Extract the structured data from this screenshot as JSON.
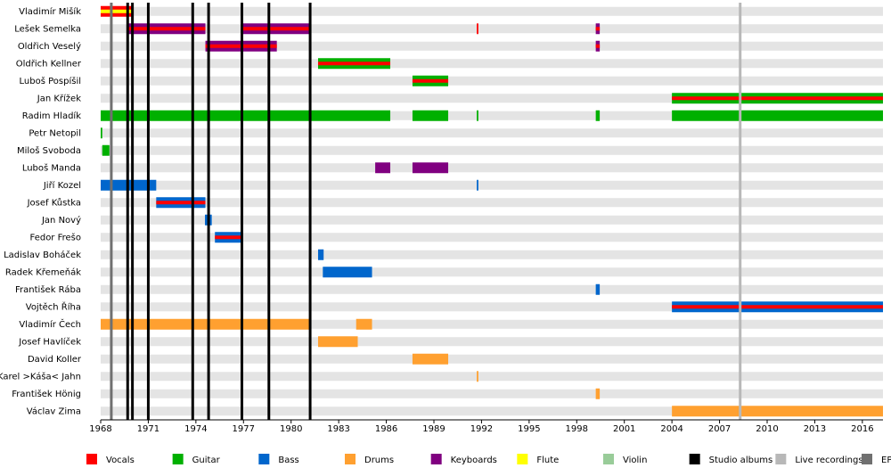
{
  "chart_data": {
    "type": "timeline",
    "xlim": [
      1968,
      2017.3
    ],
    "xticks": [
      1968,
      1971,
      1974,
      1977,
      1980,
      1983,
      1986,
      1989,
      1992,
      1995,
      1998,
      2001,
      2004,
      2007,
      2010,
      2013,
      2016
    ],
    "roles": [
      {
        "name": "Vocals",
        "color": "#ff0000"
      },
      {
        "name": "Guitar",
        "color": "#00b000"
      },
      {
        "name": "Bass",
        "color": "#0066cc"
      },
      {
        "name": "Drums",
        "color": "#ffa030"
      },
      {
        "name": "Keyboards",
        "color": "#800080"
      },
      {
        "name": "Flute",
        "color": "#ffff00"
      },
      {
        "name": "Violin",
        "color": "#99cc99"
      }
    ],
    "events": [
      {
        "name": "Studio albums",
        "color": "#000000",
        "x": [
          1969.7,
          1970.0,
          1971.0,
          1973.8,
          1974.8,
          1976.9,
          1978.6,
          1981.2
        ]
      },
      {
        "name": "Live recordings",
        "color": "#b8b8b8",
        "x": [
          2008.3
        ]
      },
      {
        "name": "EPs",
        "color": "#707070",
        "x": [
          1968.67
        ]
      }
    ],
    "members": [
      {
        "name": "Vladimír Mišík",
        "periods": [
          {
            "start": 1968.0,
            "end": 1970.0,
            "role": "Vocals",
            "also": "Flute"
          }
        ]
      },
      {
        "name": "Lešek Semelka",
        "periods": [
          {
            "start": 1969.7,
            "end": 1974.6,
            "role": "Keyboards",
            "also": "Vocals"
          },
          {
            "start": 1976.9,
            "end": 1981.2,
            "role": "Keyboards",
            "also": "Vocals"
          },
          {
            "start": 1991.7,
            "end": 1991.8,
            "role": "Vocals"
          },
          {
            "start": 1999.2,
            "end": 1999.45,
            "role": "Keyboards",
            "also": "Vocals"
          }
        ]
      },
      {
        "name": "Oldřich Veselý",
        "periods": [
          {
            "start": 1974.6,
            "end": 1979.1,
            "role": "Keyboards",
            "also": "Vocals"
          },
          {
            "start": 1999.2,
            "end": 1999.45,
            "role": "Keyboards",
            "also": "Vocals"
          }
        ]
      },
      {
        "name": "Oldřich Kellner",
        "periods": [
          {
            "start": 1981.7,
            "end": 1986.25,
            "role": "Guitar",
            "also": "Vocals"
          }
        ]
      },
      {
        "name": "Luboš Pospíšil",
        "periods": [
          {
            "start": 1987.65,
            "end": 1989.9,
            "role": "Guitar",
            "also": "Vocals"
          }
        ]
      },
      {
        "name": "Jan Křížek",
        "periods": [
          {
            "start": 2004.0,
            "end": 2017.3,
            "role": "Guitar",
            "also": "Vocals"
          }
        ]
      },
      {
        "name": "Radim Hladík",
        "periods": [
          {
            "start": 1968.0,
            "end": 1986.25,
            "role": "Guitar"
          },
          {
            "start": 1987.65,
            "end": 1989.9,
            "role": "Guitar"
          },
          {
            "start": 1991.7,
            "end": 1991.8,
            "role": "Guitar"
          },
          {
            "start": 1999.2,
            "end": 1999.45,
            "role": "Guitar"
          },
          {
            "start": 2004.0,
            "end": 2017.3,
            "role": "Guitar"
          }
        ]
      },
      {
        "name": "Petr Netopil",
        "periods": [
          {
            "start": 1968.0,
            "end": 1968.1,
            "role": "Guitar"
          }
        ]
      },
      {
        "name": "Miloš Svoboda",
        "periods": [
          {
            "start": 1968.1,
            "end": 1968.55,
            "role": "Guitar"
          }
        ]
      },
      {
        "name": "Luboš Manda",
        "periods": [
          {
            "start": 1985.3,
            "end": 1986.25,
            "role": "Keyboards"
          },
          {
            "start": 1987.65,
            "end": 1989.9,
            "role": "Keyboards"
          }
        ]
      },
      {
        "name": "Jiří Kozel",
        "periods": [
          {
            "start": 1968.0,
            "end": 1971.5,
            "role": "Bass"
          },
          {
            "start": 1991.7,
            "end": 1991.8,
            "role": "Bass"
          }
        ]
      },
      {
        "name": "Josef Kůstka",
        "periods": [
          {
            "start": 1971.5,
            "end": 1974.6,
            "role": "Bass",
            "also": "Vocals"
          }
        ]
      },
      {
        "name": "Jan Nový",
        "periods": [
          {
            "start": 1974.57,
            "end": 1975.0,
            "role": "Bass"
          }
        ]
      },
      {
        "name": "Fedor Frešo",
        "periods": [
          {
            "start": 1975.2,
            "end": 1976.9,
            "role": "Bass",
            "also": "Vocals"
          }
        ]
      },
      {
        "name": "Ladislav Boháček",
        "periods": [
          {
            "start": 1981.7,
            "end": 1982.05,
            "role": "Bass"
          }
        ]
      },
      {
        "name": "Radek Křemeňák",
        "periods": [
          {
            "start": 1982.0,
            "end": 1985.1,
            "role": "Bass"
          }
        ]
      },
      {
        "name": "František Rába",
        "periods": [
          {
            "start": 1999.2,
            "end": 1999.45,
            "role": "Bass"
          }
        ]
      },
      {
        "name": "Vojtěch Říha",
        "periods": [
          {
            "start": 2004.0,
            "end": 2017.3,
            "role": "Bass",
            "also": "Vocals"
          }
        ]
      },
      {
        "name": "Vladimír Čech",
        "periods": [
          {
            "start": 1968.0,
            "end": 1981.2,
            "role": "Drums"
          },
          {
            "start": 1984.1,
            "end": 1985.1,
            "role": "Drums"
          }
        ]
      },
      {
        "name": "Josef Havlíček",
        "periods": [
          {
            "start": 1981.7,
            "end": 1984.2,
            "role": "Drums"
          }
        ]
      },
      {
        "name": "David Koller",
        "periods": [
          {
            "start": 1987.65,
            "end": 1989.9,
            "role": "Drums"
          }
        ]
      },
      {
        "name": "Karel >Káša< Jahn",
        "periods": [
          {
            "start": 1991.7,
            "end": 1991.8,
            "role": "Drums"
          }
        ]
      },
      {
        "name": "František Hönig",
        "periods": [
          {
            "start": 1999.2,
            "end": 1999.45,
            "role": "Drums"
          }
        ]
      },
      {
        "name": "Václav Zima",
        "periods": [
          {
            "start": 2004.0,
            "end": 2017.3,
            "role": "Drums"
          }
        ]
      }
    ]
  }
}
